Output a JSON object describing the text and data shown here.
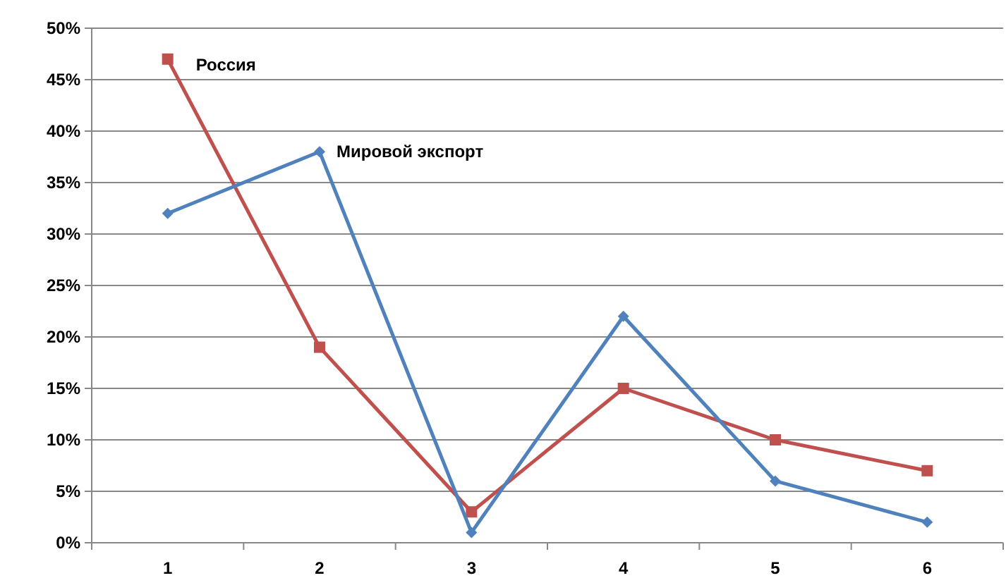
{
  "chart_data": {
    "type": "line",
    "categories": [
      "1",
      "2",
      "3",
      "4",
      "5",
      "6"
    ],
    "series": [
      {
        "name": "Россия",
        "color": "#c0504d",
        "marker": "square",
        "values": [
          47,
          19,
          3,
          15,
          10,
          7
        ]
      },
      {
        "name": "Мировой экспорт",
        "color": "#4f81bd",
        "marker": "diamond",
        "values": [
          32,
          38,
          1,
          22,
          6,
          2
        ]
      }
    ],
    "ylim": [
      0,
      50
    ],
    "yticks": [
      {
        "value": 0,
        "label": "0%"
      },
      {
        "value": 5,
        "label": "5%"
      },
      {
        "value": 10,
        "label": "10%"
      },
      {
        "value": 15,
        "label": "15%"
      },
      {
        "value": 20,
        "label": "20%"
      },
      {
        "value": 25,
        "label": "25%"
      },
      {
        "value": 30,
        "label": "30%"
      },
      {
        "value": 35,
        "label": "35%"
      },
      {
        "value": 40,
        "label": "40%"
      },
      {
        "value": 45,
        "label": "45%"
      },
      {
        "value": 50,
        "label": "50%"
      }
    ],
    "grid": "y",
    "legend": false,
    "line_style": "solid"
  }
}
